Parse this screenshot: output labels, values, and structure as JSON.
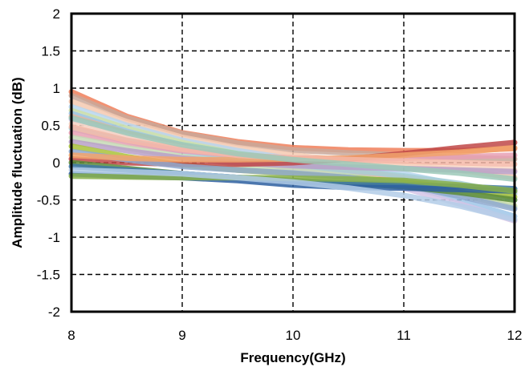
{
  "chart_data": {
    "type": "line",
    "xlabel": "Frequency(GHz)",
    "ylabel": "Amplitude fluctuation (dB)",
    "xlim": [
      8,
      12
    ],
    "ylim": [
      -2,
      2
    ],
    "xticks": [
      "8",
      "9",
      "10",
      "11",
      "12"
    ],
    "yticks": [
      "2",
      "1.5",
      "1",
      "0.5",
      "0",
      "-0.5",
      "-1",
      "-1.5",
      "-2"
    ],
    "grid": true,
    "legend": "none",
    "x": [
      8,
      8.5,
      9,
      9.5,
      10,
      10.5,
      11,
      11.5,
      12
    ],
    "series": [
      {
        "color": "#f07f5a",
        "values": [
          0.95,
          0.62,
          0.4,
          0.28,
          0.2,
          0.17,
          0.16,
          0.16,
          0.19
        ]
      },
      {
        "color": "#c9a89a",
        "values": [
          0.9,
          0.6,
          0.39,
          0.26,
          0.17,
          0.13,
          0.1,
          0.07,
          0.05
        ]
      },
      {
        "color": "#f5c9b0",
        "values": [
          0.82,
          0.55,
          0.34,
          0.2,
          0.1,
          0.03,
          -0.03,
          -0.1,
          -0.2
        ]
      },
      {
        "color": "#b7d6ee",
        "values": [
          0.75,
          0.5,
          0.3,
          0.16,
          0.05,
          -0.05,
          -0.15,
          -0.3,
          -0.5
        ]
      },
      {
        "color": "#cfe0a8",
        "values": [
          0.7,
          0.46,
          0.27,
          0.12,
          0.0,
          -0.1,
          -0.22,
          -0.38,
          -0.58
        ]
      },
      {
        "color": "#9fc5e8",
        "values": [
          0.66,
          0.42,
          0.23,
          0.08,
          -0.04,
          -0.16,
          -0.3,
          -0.5,
          -0.72
        ]
      },
      {
        "color": "#e7b39c",
        "values": [
          0.62,
          0.4,
          0.22,
          0.08,
          -0.02,
          -0.1,
          -0.2,
          -0.3,
          -0.4
        ]
      },
      {
        "color": "#d3c4e6",
        "values": [
          0.58,
          0.36,
          0.18,
          0.04,
          -0.08,
          -0.2,
          -0.34,
          -0.55,
          -0.78
        ]
      },
      {
        "color": "#f8d6c4",
        "values": [
          0.52,
          0.34,
          0.2,
          0.1,
          0.04,
          0.0,
          -0.03,
          -0.06,
          -0.1
        ]
      },
      {
        "color": "#a6cfd8",
        "values": [
          0.46,
          0.29,
          0.15,
          0.04,
          -0.04,
          -0.1,
          -0.18,
          -0.28,
          -0.42
        ]
      },
      {
        "color": "#e8a0b4",
        "values": [
          0.4,
          0.26,
          0.16,
          0.1,
          0.06,
          0.05,
          0.06,
          0.08,
          0.1
        ]
      },
      {
        "color": "#c5d9b5",
        "values": [
          0.34,
          0.2,
          0.08,
          -0.02,
          -0.1,
          -0.18,
          -0.28,
          -0.42,
          -0.6
        ]
      },
      {
        "color": "#b8a0c8",
        "values": [
          0.28,
          0.16,
          0.06,
          0.0,
          -0.04,
          -0.06,
          -0.08,
          -0.1,
          -0.12
        ]
      },
      {
        "color": "#a9c23a",
        "values": [
          0.22,
          0.08,
          -0.03,
          -0.1,
          -0.15,
          -0.2,
          -0.26,
          -0.34,
          -0.46
        ]
      },
      {
        "color": "#c04848",
        "values": [
          0.05,
          0.0,
          -0.02,
          -0.02,
          0.0,
          0.05,
          0.12,
          0.2,
          0.27
        ]
      },
      {
        "color": "#8fa9cf",
        "values": [
          0.15,
          0.04,
          -0.05,
          -0.1,
          -0.14,
          -0.2,
          -0.3,
          -0.45,
          -0.62
        ]
      },
      {
        "color": "#5b8b3a",
        "values": [
          0.0,
          -0.08,
          -0.15,
          -0.2,
          -0.24,
          -0.28,
          -0.32,
          -0.4,
          -0.5
        ]
      },
      {
        "color": "#3e78a8",
        "values": [
          -0.05,
          -0.1,
          -0.15,
          -0.2,
          -0.25,
          -0.28,
          -0.3,
          -0.32,
          -0.35
        ]
      },
      {
        "color": "#2d5fa0",
        "values": [
          -0.15,
          -0.18,
          -0.2,
          -0.24,
          -0.3,
          -0.33,
          -0.34,
          -0.36,
          -0.38
        ]
      },
      {
        "color": "#88b04b",
        "values": [
          -0.18,
          -0.19,
          -0.2,
          -0.2,
          -0.21,
          -0.22,
          -0.24,
          -0.3,
          -0.38
        ]
      },
      {
        "color": "#f2a36b",
        "values": [
          0.1,
          0.06,
          0.04,
          0.04,
          0.05,
          0.06,
          0.1,
          0.14,
          0.2
        ]
      },
      {
        "color": "#b3cde8",
        "values": [
          -0.1,
          -0.12,
          -0.15,
          -0.2,
          -0.26,
          -0.34,
          -0.44,
          -0.58,
          -0.76
        ]
      },
      {
        "color": "#f4b8a8",
        "values": [
          0.48,
          0.3,
          0.18,
          0.1,
          0.06,
          0.04,
          0.02,
          0.0,
          -0.02
        ]
      },
      {
        "color": "#9cc9b8",
        "values": [
          0.6,
          0.4,
          0.24,
          0.12,
          0.04,
          -0.02,
          -0.08,
          -0.14,
          -0.22
        ]
      }
    ]
  }
}
